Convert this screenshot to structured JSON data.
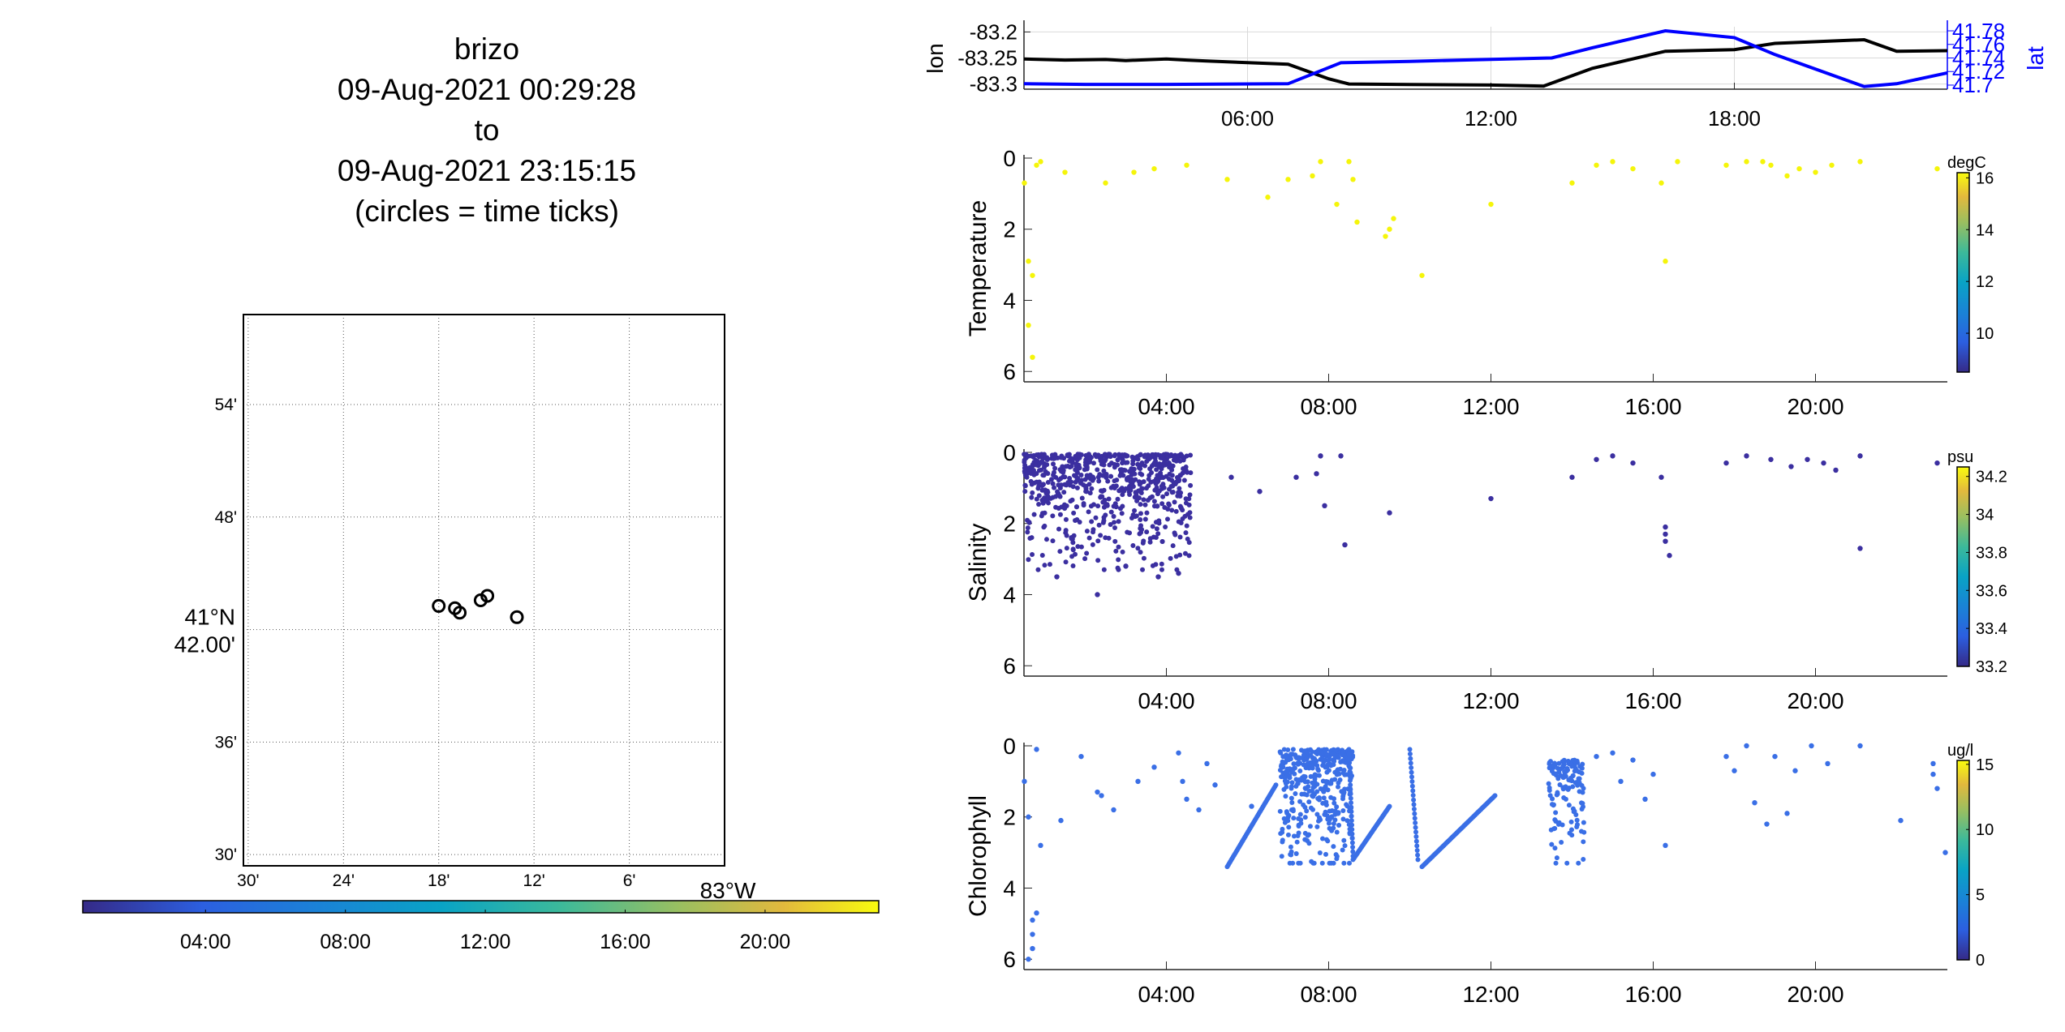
{
  "title": {
    "vehicle": "brizo",
    "start": "09-Aug-2021 00:29:28",
    "to": "to",
    "end": "09-Aug-2021 23:15:15",
    "note": "(circles = time ticks)"
  },
  "chart_data": [
    {
      "id": "map",
      "type": "scatter",
      "lat_ticks": [
        "54'",
        "48'",
        "41°N 42.00'",
        "36'",
        "30'"
      ],
      "lon_ticks": [
        "30'",
        "24'",
        "18'",
        "12'",
        "6'",
        "83°W"
      ],
      "lat_tick_values": [
        41.9,
        41.8,
        41.7,
        41.6,
        41.5
      ],
      "lon_tick_values": [
        -83.5,
        -83.4,
        -83.3,
        -83.2,
        -83.1,
        -83.0
      ],
      "xlim": [
        -83.505,
        -83.0
      ],
      "ylim": [
        41.49,
        41.98
      ],
      "circles": [
        {
          "lon": -83.249,
          "lat": 41.73
        },
        {
          "lon": -83.256,
          "lat": 41.726
        },
        {
          "lon": -83.278,
          "lat": 41.715
        },
        {
          "lon": -83.283,
          "lat": 41.719
        },
        {
          "lon": -83.218,
          "lat": 41.711
        },
        {
          "lon": -83.3,
          "lat": 41.721
        }
      ],
      "grid": "dotted"
    },
    {
      "id": "time-colorbar",
      "type": "colorbar",
      "tick_labels": [
        "04:00",
        "08:00",
        "12:00",
        "16:00",
        "20:00"
      ],
      "tick_hours": [
        4,
        8,
        12,
        16,
        20
      ],
      "range_hours": [
        0.49,
        23.25
      ],
      "colormap": "parula"
    },
    {
      "id": "lonlat",
      "type": "line",
      "xlabel": "",
      "ylabel_left": "lon",
      "ylabel_right": "lat",
      "x_ticks": [
        "06:00",
        "12:00",
        "18:00"
      ],
      "x_tick_hours": [
        6,
        12,
        18
      ],
      "xlim": [
        0.49,
        23.25
      ],
      "ylim_left": [
        -83.31,
        -83.19
      ],
      "yticks_left": [
        -83.2,
        -83.25,
        -83.3
      ],
      "ytick_labels_left": [
        "-83.2",
        "-83.25",
        "-83.3"
      ],
      "ylim_right": [
        41.694,
        41.786
      ],
      "yticks_right": [
        41.78,
        41.76,
        41.74,
        41.72,
        41.7
      ],
      "ytick_labels_right": [
        "41.78",
        "41.76",
        "41.74",
        "41.72",
        "41.7"
      ],
      "grid": true,
      "series": [
        {
          "axis": "left",
          "color": "#000000",
          "x": [
            0.49,
            1.5,
            2.5,
            3.0,
            4.0,
            4.5,
            5.0,
            6.0,
            7.0,
            8.0,
            8.5,
            10.0,
            12.0,
            13.3,
            14.5,
            16.3,
            18.0,
            19.0,
            21.2,
            22.0,
            23.25
          ],
          "y": [
            -83.252,
            -83.254,
            -83.253,
            -83.255,
            -83.252,
            -83.254,
            -83.256,
            -83.259,
            -83.262,
            -83.29,
            -83.3,
            -83.301,
            -83.302,
            -83.304,
            -83.27,
            -83.237,
            -83.234,
            -83.222,
            -83.215,
            -83.237,
            -83.236
          ]
        },
        {
          "axis": "right",
          "color": "#0000ff",
          "x": [
            0.49,
            2.0,
            4.0,
            7.0,
            8.3,
            10.0,
            12.0,
            13.5,
            14.5,
            16.3,
            18.0,
            19.0,
            21.2,
            22.0,
            23.25
          ],
          "y": [
            41.702,
            41.701,
            41.701,
            41.702,
            41.733,
            41.735,
            41.738,
            41.74,
            41.755,
            41.78,
            41.77,
            41.745,
            41.698,
            41.702,
            41.718
          ]
        }
      ]
    },
    {
      "id": "temperature",
      "type": "scatter",
      "ylabel": "Temperature",
      "x_ticks": [
        "04:00",
        "08:00",
        "12:00",
        "16:00",
        "20:00"
      ],
      "x_tick_hours": [
        4,
        8,
        12,
        16,
        20
      ],
      "xlim": [
        0.49,
        23.25
      ],
      "ylim": [
        0,
        6.2
      ],
      "yticks": [
        0,
        2,
        4,
        6
      ],
      "colorbar": {
        "unit": "degC",
        "ticks": [
          16,
          14,
          12,
          10
        ],
        "range": [
          8.5,
          16.2
        ]
      },
      "color_value": 16,
      "points": [
        [
          0.5,
          0.7
        ],
        [
          0.8,
          0.2
        ],
        [
          0.9,
          0.1
        ],
        [
          1.5,
          0.4
        ],
        [
          2.5,
          0.7
        ],
        [
          3.2,
          0.4
        ],
        [
          3.7,
          0.3
        ],
        [
          4.5,
          0.2
        ],
        [
          5.5,
          0.6
        ],
        [
          6.5,
          1.1
        ],
        [
          7.0,
          0.6
        ],
        [
          7.6,
          0.5
        ],
        [
          7.8,
          0.1
        ],
        [
          8.5,
          0.1
        ],
        [
          8.6,
          0.6
        ],
        [
          8.7,
          1.8
        ],
        [
          8.2,
          1.3
        ],
        [
          9.4,
          2.2
        ],
        [
          9.6,
          1.7
        ],
        [
          9.5,
          2.0
        ],
        [
          10.3,
          3.3
        ],
        [
          12.0,
          1.3
        ],
        [
          14.0,
          0.7
        ],
        [
          14.6,
          0.2
        ],
        [
          15.0,
          0.1
        ],
        [
          15.5,
          0.3
        ],
        [
          16.2,
          0.7
        ],
        [
          16.3,
          2.9
        ],
        [
          16.6,
          0.1
        ],
        [
          17.8,
          0.2
        ],
        [
          18.3,
          0.1
        ],
        [
          18.7,
          0.1
        ],
        [
          18.9,
          0.2
        ],
        [
          19.3,
          0.5
        ],
        [
          19.6,
          0.3
        ],
        [
          20.0,
          0.4
        ],
        [
          20.4,
          0.2
        ],
        [
          21.1,
          0.1
        ],
        [
          23.0,
          0.3
        ],
        [
          0.6,
          2.9
        ],
        [
          0.7,
          3.3
        ],
        [
          0.6,
          4.7
        ],
        [
          0.7,
          5.6
        ]
      ]
    },
    {
      "id": "salinity",
      "type": "scatter",
      "ylabel": "Salinity",
      "x_ticks": [
        "04:00",
        "08:00",
        "12:00",
        "16:00",
        "20:00"
      ],
      "x_tick_hours": [
        4,
        8,
        12,
        16,
        20
      ],
      "xlim": [
        0.49,
        23.25
      ],
      "ylim": [
        0,
        6.2
      ],
      "yticks": [
        0,
        2,
        4,
        6
      ],
      "colorbar": {
        "unit": "psu",
        "ticks": [
          34.2,
          34,
          33.8,
          33.6,
          33.4,
          33.2
        ],
        "tick_labels": [
          "34.2",
          "34",
          "33.8",
          "33.6",
          "33.4",
          "33.2"
        ],
        "range": [
          33.2,
          34.25
        ]
      },
      "color_value": 33.2,
      "dense_block": {
        "x_range": [
          0.49,
          4.6
        ],
        "y_range": [
          0.05,
          3.3
        ],
        "count": 700
      },
      "points": [
        [
          1.3,
          3.5
        ],
        [
          2.3,
          4.0
        ],
        [
          3.0,
          3.2
        ],
        [
          3.8,
          3.5
        ],
        [
          4.3,
          3.4
        ],
        [
          5.6,
          0.7
        ],
        [
          6.3,
          1.1
        ],
        [
          7.2,
          0.7
        ],
        [
          7.7,
          0.6
        ],
        [
          7.8,
          0.1
        ],
        [
          7.9,
          1.5
        ],
        [
          8.3,
          0.1
        ],
        [
          8.4,
          2.6
        ],
        [
          9.5,
          1.7
        ],
        [
          12.0,
          1.3
        ],
        [
          14.0,
          0.7
        ],
        [
          14.6,
          0.2
        ],
        [
          15.0,
          0.1
        ],
        [
          15.5,
          0.3
        ],
        [
          16.2,
          0.7
        ],
        [
          16.3,
          2.1
        ],
        [
          16.3,
          2.3
        ],
        [
          16.3,
          2.5
        ],
        [
          16.4,
          2.9
        ],
        [
          17.8,
          0.3
        ],
        [
          18.3,
          0.1
        ],
        [
          18.9,
          0.2
        ],
        [
          19.4,
          0.4
        ],
        [
          19.8,
          0.2
        ],
        [
          20.2,
          0.3
        ],
        [
          20.5,
          0.5
        ],
        [
          21.1,
          0.1
        ],
        [
          21.1,
          2.7
        ],
        [
          23.0,
          0.3
        ]
      ]
    },
    {
      "id": "chlorophyll",
      "type": "scatter",
      "ylabel": "Chlorophyll",
      "x_ticks": [
        "04:00",
        "08:00",
        "12:00",
        "16:00",
        "20:00"
      ],
      "x_tick_hours": [
        4,
        8,
        12,
        16,
        20
      ],
      "xlim": [
        0.49,
        23.25
      ],
      "ylim": [
        0,
        6.2
      ],
      "yticks": [
        0,
        2,
        4,
        6
      ],
      "colorbar": {
        "unit": "ug/l",
        "ticks": [
          15,
          10,
          5,
          0
        ],
        "range": [
          0,
          15.3
        ]
      },
      "color_value": 3.5,
      "dense_blocks": [
        {
          "x_range": [
            6.8,
            8.6
          ],
          "y_range": [
            0.1,
            3.3
          ],
          "count": 420
        },
        {
          "x_range": [
            13.4,
            14.3
          ],
          "y_range": [
            0.4,
            3.3
          ],
          "count": 130
        }
      ],
      "diagonals": [
        {
          "x": [
            5.5,
            6.7
          ],
          "y": [
            3.4,
            1.1
          ],
          "count": 50
        },
        {
          "x": [
            8.6,
            9.5
          ],
          "y": [
            3.2,
            1.7
          ],
          "count": 40
        },
        {
          "x": [
            10.3,
            12.1
          ],
          "y": [
            3.4,
            1.4
          ],
          "count": 70
        },
        {
          "x": [
            10.0,
            10.2
          ],
          "y": [
            0.1,
            3.2
          ],
          "count": 25
        },
        {
          "x": [
            8.5,
            8.6
          ],
          "y": [
            0.1,
            3.1
          ],
          "count": 25
        }
      ],
      "points": [
        [
          0.5,
          1.0
        ],
        [
          0.6,
          2.0
        ],
        [
          0.8,
          0.1
        ],
        [
          0.9,
          2.8
        ],
        [
          0.7,
          4.9
        ],
        [
          0.8,
          4.7
        ],
        [
          0.7,
          5.3
        ],
        [
          0.7,
          5.7
        ],
        [
          0.6,
          6.0
        ],
        [
          1.4,
          2.1
        ],
        [
          1.9,
          0.3
        ],
        [
          2.3,
          1.3
        ],
        [
          2.4,
          1.4
        ],
        [
          2.7,
          1.8
        ],
        [
          3.3,
          1.0
        ],
        [
          3.7,
          0.6
        ],
        [
          4.3,
          0.2
        ],
        [
          4.4,
          1.0
        ],
        [
          4.5,
          1.5
        ],
        [
          4.8,
          1.8
        ],
        [
          5.0,
          0.5
        ],
        [
          5.2,
          1.1
        ],
        [
          6.1,
          1.7
        ],
        [
          14.6,
          0.3
        ],
        [
          15.0,
          0.2
        ],
        [
          15.2,
          1.0
        ],
        [
          15.5,
          0.4
        ],
        [
          15.8,
          1.5
        ],
        [
          16.0,
          0.8
        ],
        [
          16.3,
          2.8
        ],
        [
          17.8,
          0.3
        ],
        [
          18.0,
          0.7
        ],
        [
          18.3,
          0.0
        ],
        [
          18.5,
          1.6
        ],
        [
          18.8,
          2.2
        ],
        [
          19.0,
          0.3
        ],
        [
          19.3,
          1.9
        ],
        [
          19.5,
          0.7
        ],
        [
          19.9,
          0.0
        ],
        [
          20.3,
          0.5
        ],
        [
          21.1,
          0.0
        ],
        [
          22.1,
          2.1
        ],
        [
          22.9,
          0.5
        ],
        [
          22.9,
          0.8
        ],
        [
          23.0,
          1.2
        ],
        [
          23.2,
          3.0
        ]
      ]
    }
  ],
  "colors": {
    "map_circle": "#000000",
    "lon_line": "#000000",
    "lat_line": "#0000ff",
    "axis": "#262626",
    "grid": "#d9d9d9"
  }
}
